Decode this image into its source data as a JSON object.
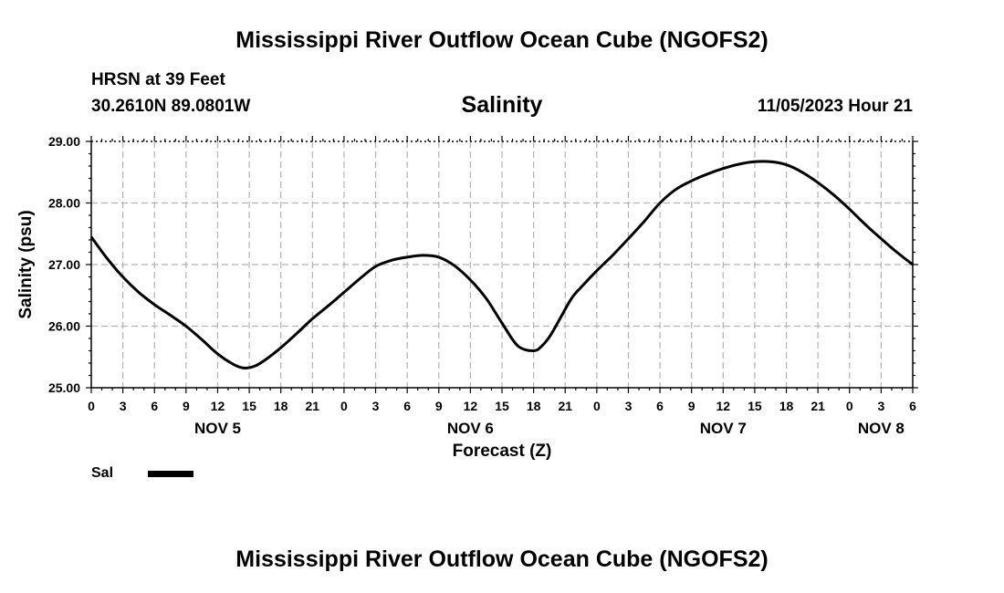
{
  "header": {
    "title": "Mississippi River Outflow Ocean Cube (NGOFS2)",
    "station": "HRSN at 39 Feet",
    "coords": "30.2610N  89.0801W",
    "subtitle": "Salinity",
    "datetime": "11/05/2023 Hour 21"
  },
  "footer": {
    "title": "Mississippi River Outflow Ocean Cube (NGOFS2)"
  },
  "legend": {
    "label": "Sal",
    "color": "#000000"
  },
  "chart_data": {
    "type": "line",
    "title": "Salinity",
    "xlabel": "Forecast (Z)",
    "ylabel": "Salinity (psu)",
    "xlim": [
      0,
      78
    ],
    "ylim": [
      25.0,
      29.0
    ],
    "yticks": [
      25.0,
      26.0,
      27.0,
      28.0,
      29.0
    ],
    "ytick_labels": [
      "25.00",
      "26.00",
      "27.00",
      "28.00",
      "29.00"
    ],
    "xticks": [
      0,
      3,
      6,
      9,
      12,
      15,
      18,
      21,
      24,
      27,
      30,
      33,
      36,
      39,
      42,
      45,
      48,
      51,
      54,
      57,
      60,
      63,
      66,
      69,
      72,
      75,
      78
    ],
    "xtick_labels": [
      "0",
      "3",
      "6",
      "9",
      "12",
      "15",
      "18",
      "21",
      "0",
      "3",
      "6",
      "9",
      "12",
      "15",
      "18",
      "21",
      "0",
      "3",
      "6",
      "9",
      "12",
      "15",
      "18",
      "21",
      "0",
      "3",
      "6"
    ],
    "day_labels": [
      {
        "hour": 12,
        "label": "NOV 5"
      },
      {
        "hour": 36,
        "label": "NOV 6"
      },
      {
        "hour": 60,
        "label": "NOV 7"
      },
      {
        "hour": 75,
        "label": "NOV 8"
      }
    ],
    "grid": true,
    "series": [
      {
        "name": "Sal",
        "color": "#000000",
        "x": [
          0,
          1.5,
          3,
          4.5,
          6,
          7.5,
          9,
          10.5,
          12,
          13.5,
          14.5,
          15.5,
          16.5,
          18,
          19.5,
          21,
          22.5,
          24,
          25.5,
          27,
          28.5,
          30,
          31.5,
          33,
          34.5,
          36,
          37.5,
          39,
          40.5,
          42,
          42.8,
          43.6,
          44.6,
          45.6,
          46.5,
          48,
          49.5,
          51,
          52.5,
          54,
          55.5,
          57,
          58.5,
          60,
          61.5,
          63,
          64.5,
          66,
          67.5,
          69,
          70.5,
          72,
          73.5,
          75,
          76.5,
          78
        ],
        "y": [
          27.45,
          27.1,
          26.8,
          26.55,
          26.35,
          26.18,
          26.0,
          25.78,
          25.55,
          25.38,
          25.32,
          25.35,
          25.45,
          25.65,
          25.88,
          26.12,
          26.33,
          26.55,
          26.77,
          26.97,
          27.07,
          27.12,
          27.15,
          27.12,
          26.98,
          26.75,
          26.45,
          26.05,
          25.68,
          25.6,
          25.68,
          25.85,
          26.15,
          26.45,
          26.63,
          26.9,
          27.15,
          27.42,
          27.7,
          28.0,
          28.22,
          28.36,
          28.47,
          28.56,
          28.63,
          28.67,
          28.67,
          28.62,
          28.5,
          28.33,
          28.13,
          27.9,
          27.65,
          27.42,
          27.2,
          27.0
        ]
      }
    ]
  }
}
